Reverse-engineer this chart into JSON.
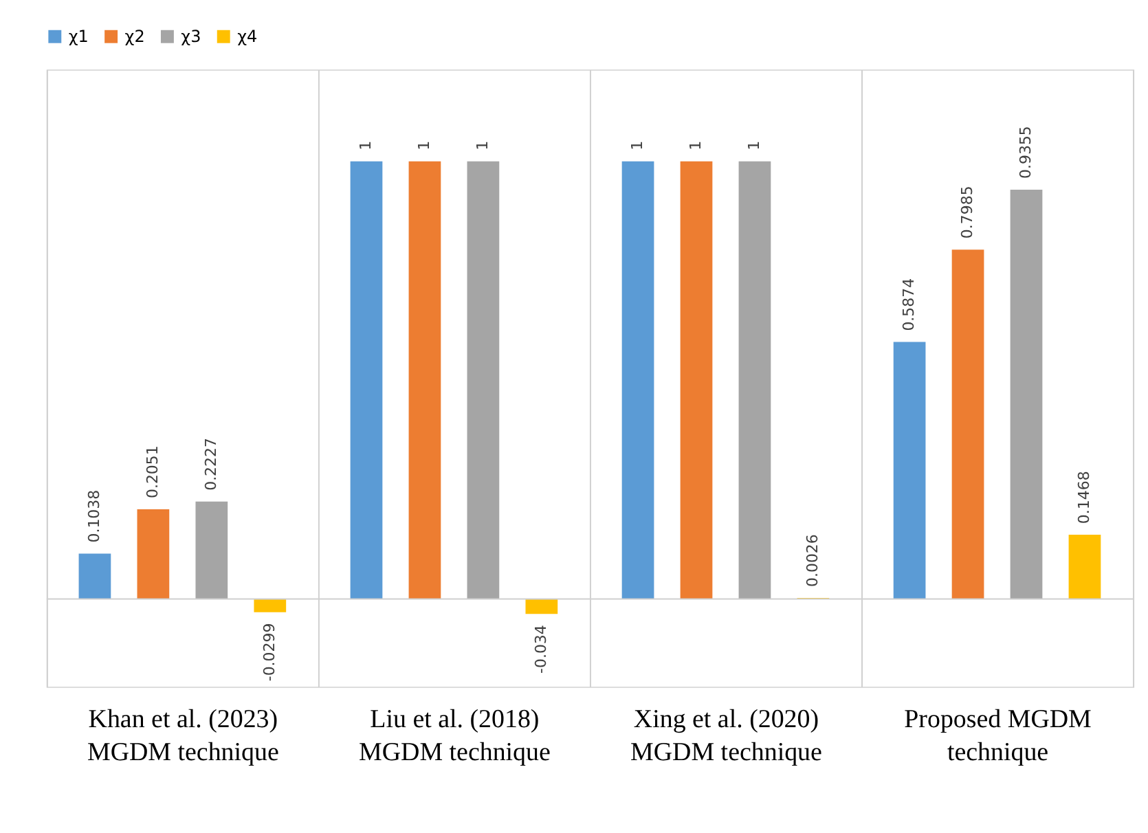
{
  "chart_data": {
    "type": "bar",
    "categories": [
      "Khan et al. (2023)\nMGDM technique",
      "Liu et al. (2018)\nMGDM technique",
      "Xing et al. (2020)\nMGDM  technique",
      "Proposed MGDM\ntechnique"
    ],
    "series": [
      {
        "name": "χ1",
        "color": "#5b9bd5",
        "values": [
          0.1038,
          1,
          1,
          0.5874
        ]
      },
      {
        "name": "χ2",
        "color": "#ed7d31",
        "values": [
          0.2051,
          1,
          1,
          0.7985
        ]
      },
      {
        "name": "χ3",
        "color": "#a5a5a5",
        "values": [
          0.2227,
          1,
          1,
          0.9355
        ]
      },
      {
        "name": "χ4",
        "color": "#ffc000",
        "values": [
          -0.0299,
          -0.034,
          0.0026,
          0.1468
        ]
      }
    ],
    "ylim": [
      -0.2,
      1.21
    ],
    "data_labels": true,
    "legend": "top",
    "grid": "x",
    "tick_labels": "x"
  }
}
